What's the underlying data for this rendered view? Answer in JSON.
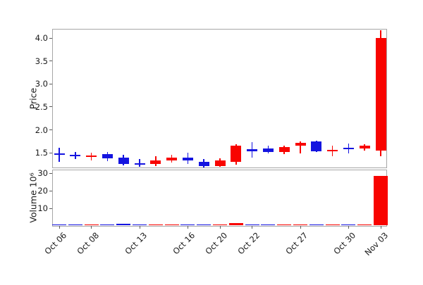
{
  "chart_data": {
    "type": "candlestick",
    "title": "",
    "up_color": "#f80400",
    "down_color": "#1414e0",
    "spine_color": "#a6a6a6",
    "price_axis": {
      "label": "Price",
      "ticks": [
        1.5,
        2.0,
        2.5,
        3.0,
        3.5,
        4.0
      ],
      "ylim": [
        1.18,
        4.2
      ]
    },
    "volume_axis": {
      "label": "Volume 10⁶",
      "ticks": [
        10,
        20,
        30
      ],
      "ylim": [
        0,
        32
      ],
      "unit": "millions"
    },
    "x_tick_labels": [
      "Oct 06",
      "Oct 08",
      "Oct 13",
      "Oct 16",
      "Oct 20",
      "Oct 22",
      "Oct 27",
      "Oct 30",
      "Nov 03"
    ],
    "x_tick_indices": [
      0,
      2,
      5,
      8,
      10,
      12,
      15,
      18,
      20
    ],
    "candles": [
      {
        "date": "Oct 06",
        "open": 1.49,
        "high": 1.61,
        "low": 1.31,
        "close": 1.45,
        "volume_millions": 1.0
      },
      {
        "date": "Oct 07",
        "open": 1.46,
        "high": 1.52,
        "low": 1.36,
        "close": 1.43,
        "volume_millions": 0.3
      },
      {
        "date": "Oct 08",
        "open": 1.41,
        "high": 1.5,
        "low": 1.33,
        "close": 1.44,
        "volume_millions": 0.4
      },
      {
        "date": "Oct 09",
        "open": 1.47,
        "high": 1.52,
        "low": 1.32,
        "close": 1.38,
        "volume_millions": 0.5
      },
      {
        "date": "Oct 10",
        "open": 1.39,
        "high": 1.45,
        "low": 1.22,
        "close": 1.26,
        "volume_millions": 1.1
      },
      {
        "date": "Oct 13",
        "open": 1.27,
        "high": 1.36,
        "low": 1.19,
        "close": 1.25,
        "volume_millions": 0.2
      },
      {
        "date": "Oct 14",
        "open": 1.26,
        "high": 1.42,
        "low": 1.21,
        "close": 1.33,
        "volume_millions": 0.3
      },
      {
        "date": "Oct 15",
        "open": 1.33,
        "high": 1.46,
        "low": 1.28,
        "close": 1.4,
        "volume_millions": 0.3
      },
      {
        "date": "Oct 16",
        "open": 1.4,
        "high": 1.5,
        "low": 1.25,
        "close": 1.33,
        "volume_millions": 0.4
      },
      {
        "date": "Oct 17",
        "open": 1.3,
        "high": 1.36,
        "low": 1.18,
        "close": 1.21,
        "volume_millions": 0.5
      },
      {
        "date": "Oct 20",
        "open": 1.21,
        "high": 1.38,
        "low": 1.19,
        "close": 1.34,
        "volume_millions": 0.6
      },
      {
        "date": "Oct 21",
        "open": 1.3,
        "high": 1.69,
        "low": 1.24,
        "close": 1.66,
        "volume_millions": 1.5
      },
      {
        "date": "Oct 22",
        "open": 1.58,
        "high": 1.73,
        "low": 1.4,
        "close": 1.53,
        "volume_millions": 0.7
      },
      {
        "date": "Oct 23",
        "open": 1.6,
        "high": 1.65,
        "low": 1.48,
        "close": 1.52,
        "volume_millions": 0.2
      },
      {
        "date": "Oct 24",
        "open": 1.51,
        "high": 1.66,
        "low": 1.47,
        "close": 1.63,
        "volume_millions": 0.3
      },
      {
        "date": "Oct 27",
        "open": 1.66,
        "high": 1.74,
        "low": 1.48,
        "close": 1.71,
        "volume_millions": 0.4
      },
      {
        "date": "Oct 28",
        "open": 1.74,
        "high": 1.77,
        "low": 1.51,
        "close": 1.54,
        "volume_millions": 0.3
      },
      {
        "date": "Oct 29",
        "open": 1.53,
        "high": 1.66,
        "low": 1.43,
        "close": 1.56,
        "volume_millions": 0.2
      },
      {
        "date": "Oct 30",
        "open": 1.61,
        "high": 1.7,
        "low": 1.49,
        "close": 1.59,
        "volume_millions": 0.2
      },
      {
        "date": "Oct 31",
        "open": 1.59,
        "high": 1.69,
        "low": 1.55,
        "close": 1.66,
        "volume_millions": 0.3
      },
      {
        "date": "Nov 03",
        "open": 1.55,
        "high": 4.17,
        "low": 1.42,
        "close": 4.0,
        "volume_millions": 28.5
      }
    ]
  }
}
